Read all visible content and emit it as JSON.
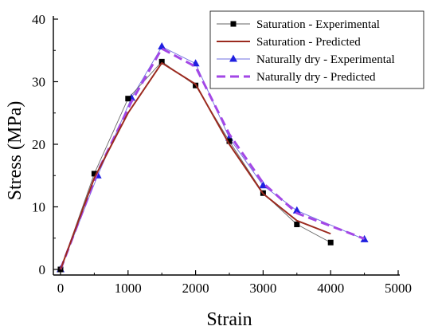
{
  "chart_data": {
    "type": "line",
    "title": "",
    "xlabel": "Strain",
    "ylabel": "Stress (MPa)",
    "xlim": [
      0,
      5000
    ],
    "ylim": [
      0,
      40
    ],
    "xticks": [
      0,
      1000,
      2000,
      3000,
      4000,
      5000
    ],
    "yticks": [
      0,
      10,
      20,
      30,
      40
    ],
    "grid": false,
    "legend_position": "top-right",
    "series": [
      {
        "name": "Saturation - Experimental",
        "style": "markers-thin-line",
        "marker": "square",
        "color": "#000000",
        "line_color": "#666666",
        "x": [
          0,
          500,
          1000,
          1500,
          2000,
          2500,
          3000,
          3500,
          4000
        ],
        "y": [
          0,
          15.3,
          27.3,
          33.2,
          29.4,
          20.5,
          12.2,
          7.2,
          4.3
        ]
      },
      {
        "name": "Saturation - Predicted",
        "style": "line",
        "color": "#9b2a1f",
        "x": [
          0,
          500,
          1000,
          1500,
          2000,
          2500,
          3000,
          3500,
          4000
        ],
        "y": [
          0,
          14.6,
          25.0,
          33.0,
          29.6,
          20.0,
          12.1,
          7.8,
          5.7
        ]
      },
      {
        "name": "Naturally dry - Experimental",
        "style": "markers-thin-line",
        "marker": "triangle",
        "color": "#1f1fe0",
        "line_color": "#6f6fe0",
        "x": [
          0,
          550,
          1050,
          1500,
          2000,
          2500,
          3000,
          3500,
          4500
        ],
        "y": [
          0,
          15.0,
          27.4,
          35.6,
          32.9,
          21.0,
          13.4,
          9.4,
          4.8
        ]
      },
      {
        "name": "Naturally dry - Predicted",
        "style": "dashed",
        "color": "#a347e6",
        "x": [
          0,
          550,
          1050,
          1500,
          2000,
          2500,
          3000,
          3500,
          4500
        ],
        "y": [
          0,
          15.6,
          26.8,
          35.3,
          32.4,
          21.6,
          13.8,
          9.0,
          4.9
        ]
      }
    ]
  }
}
